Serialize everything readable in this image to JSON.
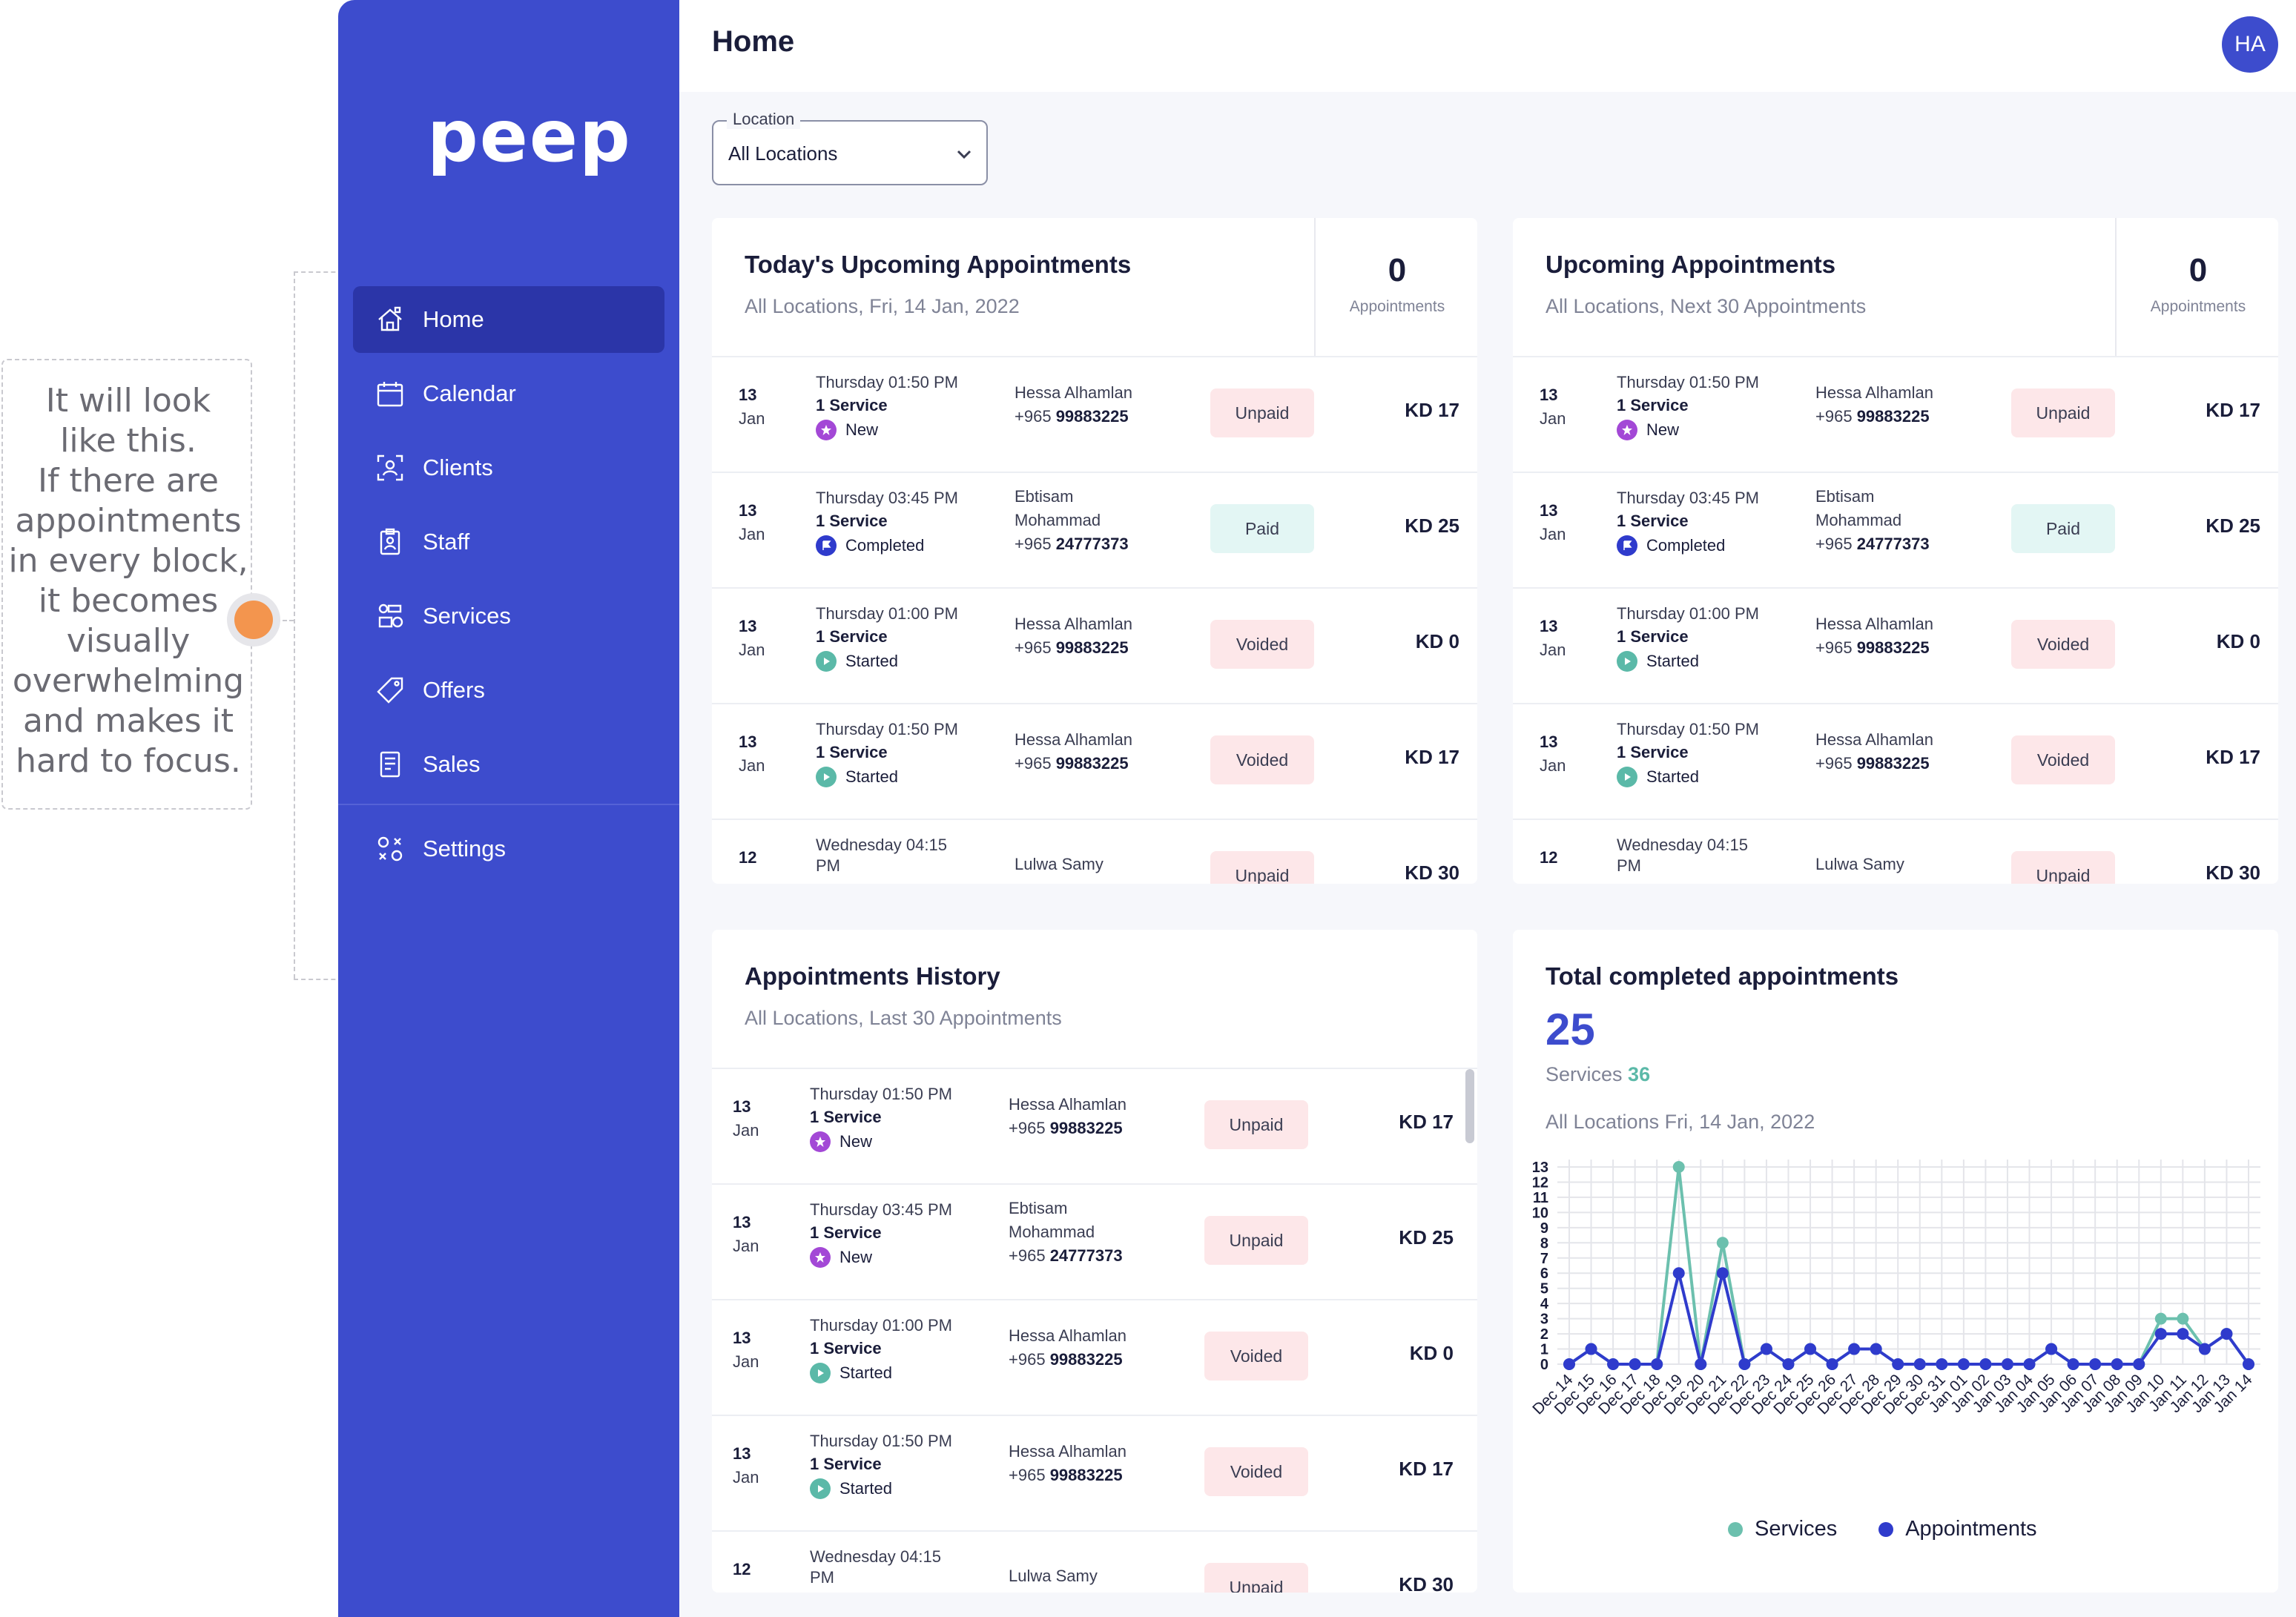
{
  "annotation": {
    "lines": [
      "It will look",
      "like this.",
      "If there are",
      "appointments",
      "in every block,",
      "it becomes",
      "visually",
      "overwhelming",
      "and makes it",
      "hard to focus."
    ]
  },
  "app": {
    "logo": "peep",
    "page_title": "Home",
    "avatar_initials": "HA"
  },
  "sidebar": {
    "items": [
      {
        "label": "Home",
        "icon": "home-icon",
        "active": true
      },
      {
        "label": "Calendar",
        "icon": "calendar-icon"
      },
      {
        "label": "Clients",
        "icon": "clients-icon"
      },
      {
        "label": "Staff",
        "icon": "staff-icon"
      },
      {
        "label": "Services",
        "icon": "services-icon"
      },
      {
        "label": "Offers",
        "icon": "offers-icon"
      },
      {
        "label": "Sales",
        "icon": "sales-icon"
      },
      {
        "label": "Settings",
        "icon": "settings-icon"
      }
    ]
  },
  "location": {
    "label": "Location",
    "value": "All Locations"
  },
  "today_card": {
    "title": "Today's Upcoming Appointments",
    "subtitle": "All Locations, Fri, 14 Jan, 2022",
    "count": "0",
    "count_label": "Appointments"
  },
  "upcoming_card": {
    "title": "Upcoming Appointments",
    "subtitle": "All Locations, Next 30 Appointments",
    "count": "0",
    "count_label": "Appointments"
  },
  "history_card": {
    "title": "Appointments History",
    "subtitle": "All Locations, Last 30 Appointments"
  },
  "rows_a": [
    {
      "day": "13",
      "month": "Jan",
      "time": "Thursday 01:50 PM",
      "service": "1 Service",
      "status": "New",
      "name": "Hessa Alhamlan",
      "name2": "",
      "phone_prefix": "+965",
      "phone": "99883225",
      "payment": "Unpaid",
      "amount": "KD 17"
    },
    {
      "day": "13",
      "month": "Jan",
      "time": "Thursday 03:45 PM",
      "service": "1 Service",
      "status": "Completed",
      "name": "Ebtisam",
      "name2": "Mohammad",
      "phone_prefix": "+965",
      "phone": "24777373",
      "payment": "Paid",
      "amount": "KD 25"
    },
    {
      "day": "13",
      "month": "Jan",
      "time": "Thursday 01:00 PM",
      "service": "1 Service",
      "status": "Started",
      "name": "Hessa Alhamlan",
      "name2": "",
      "phone_prefix": "+965",
      "phone": "99883225",
      "payment": "Voided",
      "amount": "KD 0"
    },
    {
      "day": "13",
      "month": "Jan",
      "time": "Thursday 01:50 PM",
      "service": "1 Service",
      "status": "Started",
      "name": "Hessa Alhamlan",
      "name2": "",
      "phone_prefix": "+965",
      "phone": "99883225",
      "payment": "Voided",
      "amount": "KD 17"
    },
    {
      "day": "12",
      "month": "",
      "time": "Wednesday 04:15 PM",
      "service": "",
      "status": "",
      "name": "Lulwa Samy",
      "name2": "",
      "phone_prefix": "",
      "phone": "",
      "payment": "Unpaid",
      "amount": "KD 30"
    }
  ],
  "rows_history": [
    {
      "day": "13",
      "month": "Jan",
      "time": "Thursday 01:50 PM",
      "service": "1 Service",
      "status": "New",
      "name": "Hessa Alhamlan",
      "name2": "",
      "phone_prefix": "+965",
      "phone": "99883225",
      "payment": "Unpaid",
      "amount": "KD 17"
    },
    {
      "day": "13",
      "month": "Jan",
      "time": "Thursday 03:45 PM",
      "service": "1 Service",
      "status": "New",
      "name": "Ebtisam",
      "name2": "Mohammad",
      "phone_prefix": "+965",
      "phone": "24777373",
      "payment": "Unpaid",
      "amount": "KD 25"
    },
    {
      "day": "13",
      "month": "Jan",
      "time": "Thursday 01:00 PM",
      "service": "1 Service",
      "status": "Started",
      "name": "Hessa Alhamlan",
      "name2": "",
      "phone_prefix": "+965",
      "phone": "99883225",
      "payment": "Voided",
      "amount": "KD 0"
    },
    {
      "day": "13",
      "month": "Jan",
      "time": "Thursday 01:50 PM",
      "service": "1 Service",
      "status": "Started",
      "name": "Hessa Alhamlan",
      "name2": "",
      "phone_prefix": "+965",
      "phone": "99883225",
      "payment": "Voided",
      "amount": "KD 17"
    },
    {
      "day": "12",
      "month": "",
      "time": "Wednesday 04:15 PM",
      "service": "",
      "status": "",
      "name": "Lulwa Samy",
      "name2": "",
      "phone_prefix": "",
      "phone": "",
      "payment": "Unpaid",
      "amount": "KD 30"
    }
  ],
  "total_card": {
    "title": "Total completed appointments",
    "total": "25",
    "services_label": "Services",
    "services_value": "36",
    "subtitle": "All Locations Fri, 14 Jan, 2022"
  },
  "colors": {
    "services": "#6cc0ae",
    "appointments": "#2f3bcc",
    "status_new": "#a348d6",
    "status_completed": "#2f3bcc",
    "status_started": "#5bb9a8"
  },
  "chart_data": {
    "type": "line",
    "categories": [
      "Dec 14",
      "Dec 15",
      "Dec 16",
      "Dec 17",
      "Dec 18",
      "Dec 19",
      "Dec 20",
      "Dec 21",
      "Dec 22",
      "Dec 23",
      "Dec 24",
      "Dec 25",
      "Dec 26",
      "Dec 27",
      "Dec 28",
      "Dec 29",
      "Dec 30",
      "Dec 31",
      "Jan 01",
      "Jan 02",
      "Jan 03",
      "Jan 04",
      "Jan 05",
      "Jan 06",
      "Jan 07",
      "Jan 08",
      "Jan 09",
      "Jan 10",
      "Jan 11",
      "Jan 12",
      "Jan 13",
      "Jan 14"
    ],
    "series": [
      {
        "name": "Services",
        "values": [
          0,
          1,
          0,
          0,
          0,
          13,
          0,
          8,
          0,
          1,
          0,
          1,
          0,
          1,
          1,
          0,
          0,
          0,
          0,
          0,
          0,
          0,
          1,
          0,
          0,
          0,
          0,
          3,
          3,
          1,
          2,
          0
        ]
      },
      {
        "name": "Appointments",
        "values": [
          0,
          1,
          0,
          0,
          0,
          6,
          0,
          6,
          0,
          1,
          0,
          1,
          0,
          1,
          1,
          0,
          0,
          0,
          0,
          0,
          0,
          0,
          1,
          0,
          0,
          0,
          0,
          2,
          2,
          1,
          2,
          0
        ]
      }
    ],
    "yticks": [
      0,
      1,
      2,
      3,
      4,
      5,
      6,
      7,
      8,
      9,
      10,
      11,
      12,
      13
    ],
    "ylim": [
      0,
      13
    ],
    "grid": true,
    "legend": "bottom"
  }
}
